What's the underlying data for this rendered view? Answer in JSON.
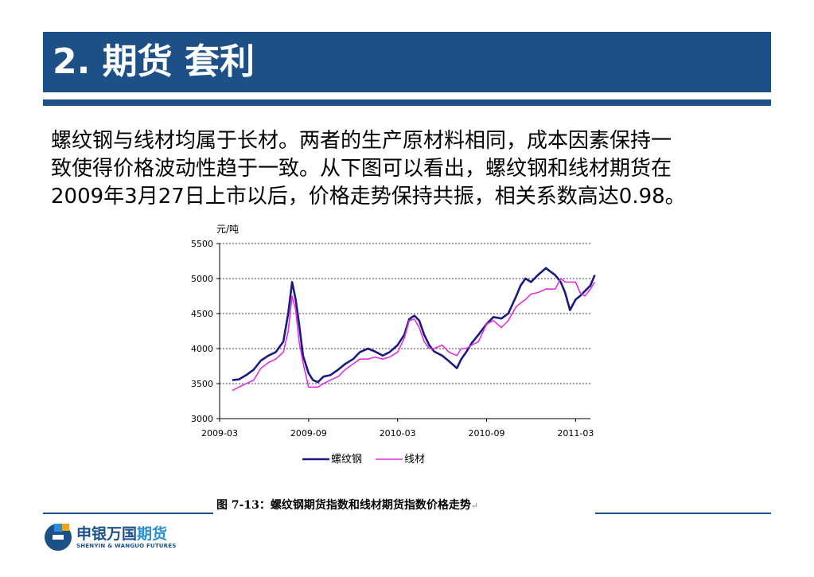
{
  "slide": {
    "title": "2. 期货 套利",
    "body_lines": [
      "螺纹钢与线材均属于长材。两者的生产原材料相同，成本因素保持一",
      "致使得价格波动性趋于一致。从下图可以看出，螺纹钢和线材期货在",
      "2009年3月27日上市以后，价格走势保持共振，相关系数高达0.98。"
    ],
    "caption": "图 7-13：螺纹钢期货指数和线材期货指数价格走势",
    "caption_mark": "↵"
  },
  "logo": {
    "name_main": "申银万国",
    "name_accent": "期货",
    "name_en": "SHENYIN & WANGUO FUTURES"
  },
  "colors": {
    "brand_blue": "#1e5088",
    "rebar": "#1a1a80",
    "wire": "#e030e0"
  },
  "chart_data": {
    "type": "line",
    "ylabel": "元/吨",
    "ylim": [
      3000,
      5500
    ],
    "yticks": [
      3000,
      3500,
      4000,
      4500,
      5000,
      5500
    ],
    "xlim": [
      "2009-03",
      "2011-04"
    ],
    "xticks": [
      "2009-03",
      "2009-09",
      "2010-03",
      "2010-09",
      "2011-03"
    ],
    "grid": "horizontal-dashed",
    "legend": "bottom",
    "series": [
      {
        "name": "螺纹钢",
        "color": "#1a1a80",
        "x": [
          "2009-03-27",
          "2009-04-10",
          "2009-04-25",
          "2009-05-10",
          "2009-05-25",
          "2009-06-10",
          "2009-06-25",
          "2009-07-10",
          "2009-07-20",
          "2009-07-28",
          "2009-08-05",
          "2009-08-12",
          "2009-08-20",
          "2009-09-01",
          "2009-09-10",
          "2009-09-20",
          "2009-10-01",
          "2009-10-15",
          "2009-11-01",
          "2009-11-15",
          "2009-12-01",
          "2009-12-15",
          "2010-01-01",
          "2010-01-15",
          "2010-02-01",
          "2010-02-15",
          "2010-03-01",
          "2010-03-15",
          "2010-03-25",
          "2010-04-05",
          "2010-04-15",
          "2010-04-25",
          "2010-05-05",
          "2010-05-15",
          "2010-06-01",
          "2010-06-15",
          "2010-07-01",
          "2010-07-10",
          "2010-07-20",
          "2010-08-01",
          "2010-08-15",
          "2010-09-01",
          "2010-09-15",
          "2010-10-01",
          "2010-10-15",
          "2010-11-01",
          "2010-11-10",
          "2010-11-20",
          "2010-12-01",
          "2010-12-15",
          "2011-01-01",
          "2011-01-10",
          "2011-01-20",
          "2011-02-01",
          "2011-02-10",
          "2011-02-20",
          "2011-03-01",
          "2011-03-10",
          "2011-03-20",
          "2011-04-01",
          "2011-04-10"
        ],
        "values": [
          3550,
          3560,
          3620,
          3700,
          3830,
          3900,
          3950,
          4100,
          4500,
          4950,
          4700,
          4350,
          3900,
          3650,
          3550,
          3520,
          3600,
          3620,
          3700,
          3780,
          3850,
          3950,
          4000,
          3960,
          3900,
          3950,
          4050,
          4200,
          4420,
          4470,
          4400,
          4200,
          4050,
          3960,
          3900,
          3820,
          3720,
          3850,
          3950,
          4080,
          4200,
          4350,
          4450,
          4430,
          4500,
          4750,
          4900,
          5000,
          4950,
          5050,
          5150,
          5100,
          5050,
          4950,
          4800,
          4550,
          4700,
          4750,
          4820,
          4900,
          5050
        ]
      },
      {
        "name": "线材",
        "color": "#e030e0",
        "x": [
          "2009-03-27",
          "2009-04-10",
          "2009-04-25",
          "2009-05-10",
          "2009-05-25",
          "2009-06-10",
          "2009-06-25",
          "2009-07-10",
          "2009-07-20",
          "2009-07-28",
          "2009-08-05",
          "2009-08-12",
          "2009-08-20",
          "2009-09-01",
          "2009-09-10",
          "2009-09-20",
          "2009-10-01",
          "2009-10-15",
          "2009-11-01",
          "2009-11-15",
          "2009-12-01",
          "2009-12-15",
          "2010-01-01",
          "2010-01-15",
          "2010-02-01",
          "2010-02-15",
          "2010-03-01",
          "2010-03-15",
          "2010-03-25",
          "2010-04-05",
          "2010-04-15",
          "2010-04-25",
          "2010-05-05",
          "2010-05-15",
          "2010-06-01",
          "2010-06-15",
          "2010-07-01",
          "2010-07-10",
          "2010-07-20",
          "2010-08-01",
          "2010-08-15",
          "2010-09-01",
          "2010-09-15",
          "2010-10-01",
          "2010-10-15",
          "2010-11-01",
          "2010-11-10",
          "2010-11-20",
          "2010-12-01",
          "2010-12-15",
          "2011-01-01",
          "2011-01-10",
          "2011-01-20",
          "2011-02-01",
          "2011-02-10",
          "2011-02-20",
          "2011-03-01",
          "2011-03-10",
          "2011-03-20",
          "2011-04-01",
          "2011-04-10"
        ],
        "values": [
          3400,
          3450,
          3500,
          3550,
          3720,
          3800,
          3850,
          3950,
          4250,
          4750,
          4550,
          4100,
          3800,
          3450,
          3450,
          3450,
          3500,
          3550,
          3600,
          3700,
          3780,
          3850,
          3850,
          3880,
          3850,
          3880,
          3950,
          4150,
          4400,
          4420,
          4300,
          4100,
          4000,
          4000,
          4050,
          3950,
          3900,
          4000,
          4000,
          4050,
          4100,
          4350,
          4400,
          4300,
          4400,
          4600,
          4650,
          4700,
          4780,
          4800,
          4850,
          4850,
          4850,
          5000,
          4950,
          4950,
          4950,
          4800,
          4750,
          4850,
          4950
        ]
      }
    ]
  }
}
